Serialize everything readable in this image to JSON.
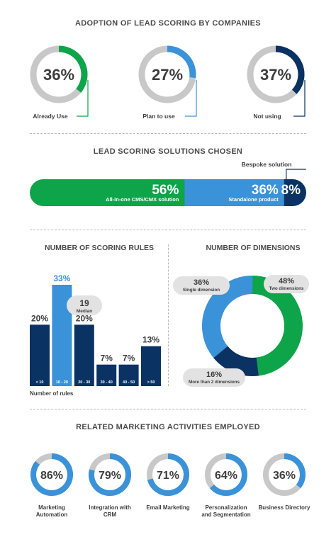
{
  "colors": {
    "green": "#0ea44a",
    "blue": "#3a92d9",
    "navy": "#0a3263",
    "gray": "#c8c8c8",
    "text": "#3d3d3d"
  },
  "adoption": {
    "title": "ADOPTION OF LEAD SCORING BY COMPANIES",
    "items": [
      {
        "value": 36,
        "display": "36%",
        "label": "Already Use",
        "color": "green"
      },
      {
        "value": 27,
        "display": "27%",
        "label": "Plan to use",
        "color": "blue"
      },
      {
        "value": 37,
        "display": "37%",
        "label": "Not using",
        "color": "navy"
      }
    ]
  },
  "solutions": {
    "title": "LEAD SCORING SOLUTIONS CHOSEN",
    "callout": "Bespoke solution",
    "segments": [
      {
        "value": 56,
        "display": "56%",
        "label": "All-in-one CMS/CMX solution",
        "color": "green"
      },
      {
        "value": 36,
        "display": "36%",
        "label": "Standalone product",
        "color": "blue"
      },
      {
        "value": 8,
        "display": "8%",
        "label": "",
        "color": "navy"
      }
    ]
  },
  "chart_data": [
    {
      "type": "bar",
      "title": "NUMBER OF SCORING RULES",
      "xlabel": "Number of rules",
      "categories": [
        "< 10",
        "10 - 20",
        "20 - 30",
        "30 - 40",
        "40 - 50",
        "> 50"
      ],
      "values": [
        20,
        33,
        20,
        7,
        7,
        13
      ],
      "value_labels": [
        "20%",
        "33%",
        "20%",
        "7%",
        "7%",
        "13%"
      ],
      "highlight_index": 1,
      "annotation": {
        "value": "19",
        "label": "Median"
      },
      "ylim": [
        0,
        33
      ]
    },
    {
      "type": "pie",
      "title": "NUMBER OF DIMENSIONS",
      "donut": true,
      "slices": [
        {
          "label": "Two dimensions",
          "value": 48,
          "display": "48%",
          "color": "green"
        },
        {
          "label": "More than 2 dimensions",
          "value": 16,
          "display": "16%",
          "color": "navy"
        },
        {
          "label": "Single dimension",
          "value": 36,
          "display": "36%",
          "color": "blue"
        }
      ]
    }
  ],
  "activities": {
    "title": "RELATED MARKETING ACTIVITIES EMPLOYED",
    "items": [
      {
        "value": 86,
        "display": "86%",
        "label_lines": [
          "Marketing",
          "Automation"
        ]
      },
      {
        "value": 79,
        "display": "79%",
        "label_lines": [
          "Integration with",
          "CRM"
        ]
      },
      {
        "value": 71,
        "display": "71%",
        "label_lines": [
          "Email Marketing"
        ]
      },
      {
        "value": 64,
        "display": "64%",
        "label_lines": [
          "Personalization",
          "and Segmentation"
        ]
      },
      {
        "value": 36,
        "display": "36%",
        "label_lines": [
          "Business Directory"
        ]
      }
    ]
  }
}
